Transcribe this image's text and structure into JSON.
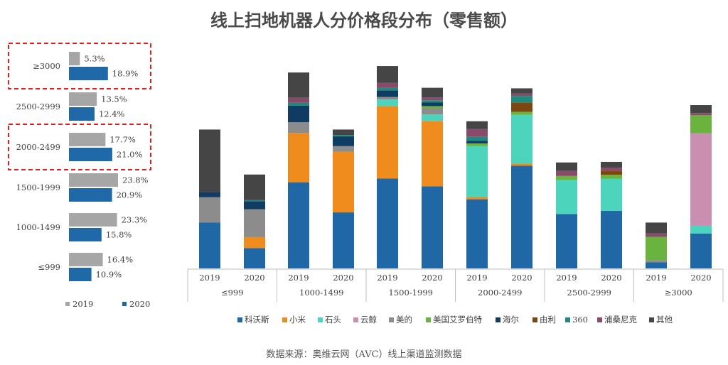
{
  "title": "线上扫地机器人分价格段分布（零售额）",
  "source": "数据来源：奥维云网（AVC）线上渠道监测数据",
  "colors": {
    "c2019": "#a6a6a6",
    "c2020": "#2069a9",
    "highlight": "#e02020"
  },
  "chart_data": [
    {
      "type": "bar",
      "orientation": "horizontal",
      "categories": [
        ">=3000",
        "2500-2999",
        "2000-2499",
        "1500-1999",
        "1000-1499",
        "<=999"
      ],
      "category_labels": [
        "≥3000",
        "2500-2999",
        "2000-2499",
        "1500-1999",
        "1000-1499",
        "≤999"
      ],
      "series": [
        {
          "name": "2019",
          "values": [
            5.3,
            13.5,
            17.7,
            23.8,
            23.3,
            16.4
          ],
          "labels": [
            "5.3%",
            "13.5%",
            "17.7%",
            "23.8%",
            "23.3%",
            "16.4%"
          ]
        },
        {
          "name": "2020",
          "values": [
            18.9,
            12.4,
            21.0,
            20.9,
            15.8,
            10.9
          ],
          "labels": [
            "18.9%",
            "12.4%",
            "21.0%",
            "20.9%",
            "15.8%",
            "10.9%"
          ]
        }
      ],
      "highlighted": [
        ">=3000",
        "2000-2499"
      ],
      "legend": [
        "2019",
        "2020"
      ]
    },
    {
      "type": "bar",
      "stacked": true,
      "groups": [
        {
          "label": "≤999",
          "years": [
            "2019",
            "2020"
          ]
        },
        {
          "label": "1000-1499",
          "years": [
            "2019",
            "2020"
          ]
        },
        {
          "label": "1500-1999",
          "years": [
            "2019",
            "2020"
          ]
        },
        {
          "label": "2000-2499",
          "years": [
            "2019",
            "2020"
          ]
        },
        {
          "label": "2500-2999",
          "years": [
            "2019",
            "2020"
          ]
        },
        {
          "label": "≥3000",
          "years": [
            "2019",
            "2020"
          ]
        }
      ],
      "series": [
        {
          "name": "科沃斯",
          "color": "#1f67a5",
          "values": [
            31.6,
            14.0,
            59.2,
            38.5,
            61.7,
            56.4,
            47.5,
            70.5,
            37.3,
            39.5,
            4.2,
            23.9
          ]
        },
        {
          "name": "小米",
          "color": "#f08c1e",
          "values": [
            0,
            7.5,
            33.8,
            41.7,
            49.8,
            44.9,
            1.5,
            1.5,
            0,
            0,
            0,
            0
          ]
        },
        {
          "name": "石头",
          "color": "#4dd4bc",
          "values": [
            0,
            0,
            0,
            0,
            4.5,
            4.5,
            35.1,
            33.5,
            23.5,
            22.2,
            0,
            5.4
          ]
        },
        {
          "name": "云鲸",
          "color": "#c98eb0",
          "values": [
            0,
            0,
            0,
            0,
            0,
            0,
            0,
            0,
            0,
            0,
            0,
            63.6
          ]
        },
        {
          "name": "美的",
          "color": "#8c8c8c",
          "values": [
            17.3,
            19.1,
            7.4,
            3.8,
            1.8,
            4.2,
            0,
            0,
            0,
            0,
            1.5,
            0
          ]
        },
        {
          "name": "美国艾罗伯特",
          "color": "#6ab33e",
          "values": [
            0,
            0,
            0,
            0,
            0,
            1.5,
            1.8,
            2.1,
            2.7,
            2.6,
            16.0,
            12.3
          ]
        },
        {
          "name": "海尔",
          "color": "#113c62",
          "values": [
            3.5,
            5.6,
            11.3,
            6.7,
            4.5,
            2.4,
            1.8,
            0,
            0,
            0,
            0,
            0
          ]
        },
        {
          "name": "由利",
          "color": "#7c4710",
          "values": [
            0,
            0,
            0,
            0,
            0,
            0,
            0,
            6.4,
            0,
            2.9,
            0,
            0
          ]
        },
        {
          "name": "360",
          "color": "#1e8a80",
          "values": [
            0,
            0.7,
            2.0,
            0.9,
            1.8,
            1.6,
            2.7,
            4.5,
            0,
            0,
            0,
            0
          ]
        },
        {
          "name": "浦桑尼克",
          "color": "#8a4a6a",
          "values": [
            0,
            0,
            3.5,
            0,
            3.3,
            2.0,
            5.3,
            1.7,
            3.5,
            2.0,
            2.3,
            1.5
          ]
        },
        {
          "name": "其他",
          "color": "#454545",
          "values": [
            43.0,
            17.6,
            17.4,
            3.8,
            11.6,
            6.6,
            5.4,
            3.5,
            5.8,
            4.0,
            7.5,
            5.5
          ]
        }
      ]
    }
  ]
}
